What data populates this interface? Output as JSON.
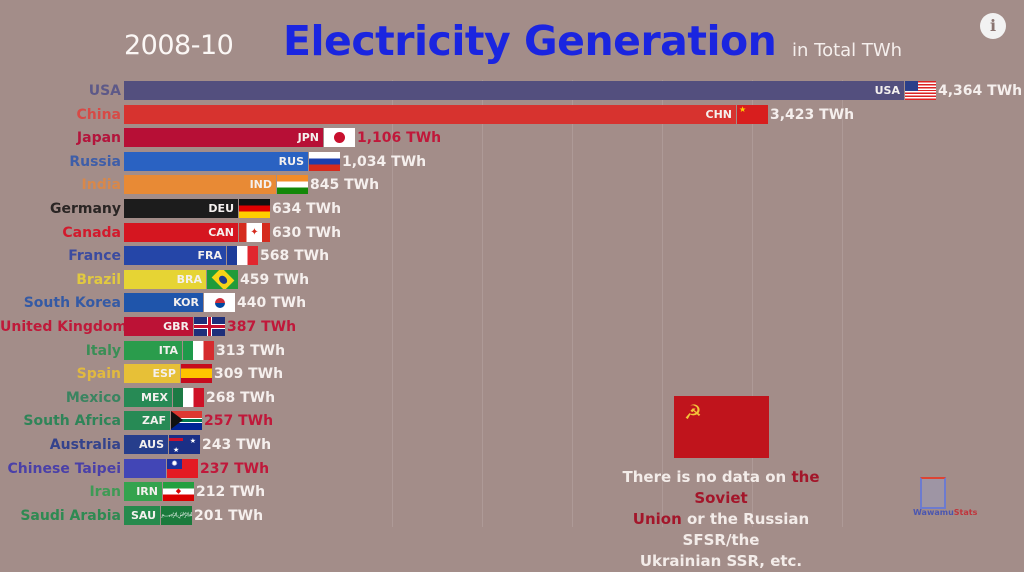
{
  "header": {
    "year": "2008-10",
    "title": "Electricity Generation",
    "subtitle": "in Total TWh",
    "info_icon": "info-icon"
  },
  "chart_data": {
    "type": "bar",
    "orientation": "horizontal",
    "title": "Electricity Generation",
    "subtitle": "in Total TWh",
    "period": "2008-10",
    "unit": "TWh",
    "categories": [
      "USA",
      "China",
      "Japan",
      "Russia",
      "India",
      "Germany",
      "Canada",
      "France",
      "Brazil",
      "South Korea",
      "United Kingdom",
      "Italy",
      "Spain",
      "Mexico",
      "South Africa",
      "Australia",
      "Chinese Taipei",
      "Iran",
      "Saudi Arabia"
    ],
    "values": [
      4364,
      3423,
      1106,
      1034,
      845,
      634,
      630,
      568,
      459,
      440,
      387,
      313,
      309,
      268,
      257,
      243,
      237,
      212,
      201
    ],
    "grid": true,
    "legend": "none"
  },
  "rows": [
    {
      "name": "USA",
      "code": "USA",
      "value": "4,364 TWh",
      "bar_end": 904,
      "bar_color": "#534f7e",
      "label_color": "#5d5988",
      "value_color": "#f5efed",
      "flag": "us"
    },
    {
      "name": "China",
      "code": "CHN",
      "value": "3,423 TWh",
      "bar_end": 736,
      "bar_color": "#d7332f",
      "label_color": "#d74a46",
      "value_color": "#f5efed",
      "flag": "cn"
    },
    {
      "name": "Japan",
      "code": "JPN",
      "value": "1,106 TWh",
      "bar_end": 323,
      "bar_color": "#b70f36",
      "label_color": "#b3153c",
      "value_color": "#c0183a",
      "flag": "jp"
    },
    {
      "name": "Russia",
      "code": "RUS",
      "value": "1,034 TWh",
      "bar_end": 308,
      "bar_color": "#2a62c2",
      "label_color": "#3f5ea8",
      "value_color": "#f5efed",
      "flag": "ru"
    },
    {
      "name": "India",
      "code": "IND",
      "value": "845 TWh",
      "bar_end": 276,
      "bar_color": "#e88a35",
      "label_color": "#d8884a",
      "value_color": "#f5efed",
      "flag": "in"
    },
    {
      "name": "Germany",
      "code": "DEU",
      "value": "634 TWh",
      "bar_end": 238,
      "bar_color": "#1c1c1c",
      "label_color": "#2a2524",
      "value_color": "#f5efed",
      "flag": "de"
    },
    {
      "name": "Canada",
      "code": "CAN",
      "value": "630 TWh",
      "bar_end": 238,
      "bar_color": "#d51620",
      "label_color": "#d21a2c",
      "value_color": "#f5efed",
      "flag": "ca"
    },
    {
      "name": "France",
      "code": "FRA",
      "value": "568 TWh",
      "bar_end": 226,
      "bar_color": "#2546a8",
      "label_color": "#3b4ba0",
      "value_color": "#f5efed",
      "flag": "fr"
    },
    {
      "name": "Brazil",
      "code": "BRA",
      "value": "459 TWh",
      "bar_end": 206,
      "bar_color": "#e6d434",
      "label_color": "#e1c940",
      "value_color": "#f5efed",
      "flag": "br"
    },
    {
      "name": "South Korea",
      "code": "KOR",
      "value": "440 TWh",
      "bar_end": 203,
      "bar_color": "#1f55ab",
      "label_color": "#355aa4",
      "value_color": "#f5efed",
      "flag": "kr"
    },
    {
      "name": "United Kingdom",
      "code": "GBR",
      "value": "387 TWh",
      "bar_end": 193,
      "bar_color": "#bc1236",
      "label_color": "#bf1a3a",
      "value_color": "#c0183a",
      "flag": "gb"
    },
    {
      "name": "Italy",
      "code": "ITA",
      "value": "313 TWh",
      "bar_end": 182,
      "bar_color": "#2a9c4c",
      "label_color": "#3a8e56",
      "value_color": "#f5efed",
      "flag": "it"
    },
    {
      "name": "Spain",
      "code": "ESP",
      "value": "309 TWh",
      "bar_end": 180,
      "bar_color": "#e7c037",
      "label_color": "#e1b93f",
      "value_color": "#f5efed",
      "flag": "es"
    },
    {
      "name": "Mexico",
      "code": "MEX",
      "value": "268 TWh",
      "bar_end": 172,
      "bar_color": "#278a55",
      "label_color": "#3a8460",
      "value_color": "#f5efed",
      "flag": "mx"
    },
    {
      "name": "South Africa",
      "code": "ZAF",
      "value": "257 TWh",
      "bar_end": 170,
      "bar_color": "#278a55",
      "label_color": "#2f8458",
      "value_color": "#c0183a",
      "flag": "za"
    },
    {
      "name": "Australia",
      "code": "AUS",
      "value": "243 TWh",
      "bar_end": 168,
      "bar_color": "#263e8c",
      "label_color": "#34438c",
      "value_color": "#f5efed",
      "flag": "au"
    },
    {
      "name": "Chinese Taipei",
      "code": "",
      "value": "237 TWh",
      "bar_end": 166,
      "bar_color": "#4246b6",
      "label_color": "#4a40a8",
      "value_color": "#c0183a",
      "flag": "tw"
    },
    {
      "name": "Iran",
      "code": "IRN",
      "value": "212 TWh",
      "bar_end": 162,
      "bar_color": "#34a34e",
      "label_color": "#3f9a55",
      "value_color": "#f5efed",
      "flag": "ir"
    },
    {
      "name": "Saudi Arabia",
      "code": "SAU",
      "value": "201 TWh",
      "bar_end": 160,
      "bar_color": "#268a4d",
      "label_color": "#2e8a52",
      "value_color": "#f5efed",
      "flag": "sa"
    }
  ],
  "note": {
    "line1_pre": "There is no data on ",
    "line1_hl": "the Soviet",
    "line2_hl": "Union",
    "line2_post": " or the Russian SFSR/the",
    "line3": "Ukrainian SSR, etc.",
    "flag_symbol": "☭"
  },
  "logo": {
    "part1": "Wawamu",
    "part2": "Stats"
  }
}
